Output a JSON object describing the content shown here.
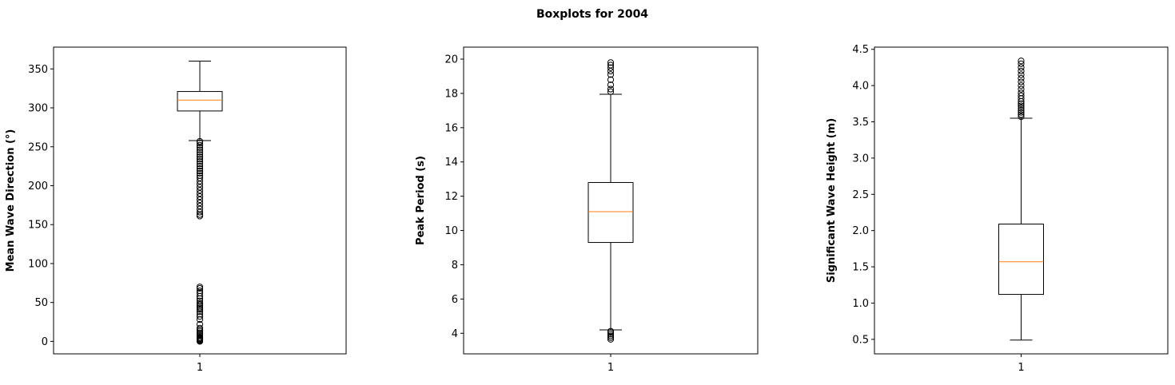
{
  "figure": {
    "title": "Boxplots for 2004"
  },
  "colors": {
    "box": "#000000",
    "median": "#ff7f0e",
    "background": "#ffffff"
  },
  "chart_data": [
    {
      "type": "boxplot",
      "title": "",
      "xlabel": "",
      "ylabel": "Mean Wave Direction (°)",
      "categories": [
        "1"
      ],
      "ylim": [
        -16,
        378
      ],
      "yticks": [
        0,
        50,
        100,
        150,
        200,
        250,
        300,
        350
      ],
      "box": {
        "whisker_low": 258,
        "q1": 296,
        "median": 310,
        "q3": 321,
        "whisker_high": 360
      },
      "outliers": [
        0,
        1,
        2,
        3,
        4,
        5,
        7,
        9,
        11,
        13,
        15,
        17,
        22,
        28,
        32,
        35,
        38,
        41,
        43,
        45,
        47,
        49,
        52,
        55,
        58,
        62,
        65,
        68,
        70,
        161,
        163,
        166,
        170,
        174,
        178,
        182,
        186,
        190,
        194,
        198,
        202,
        206,
        210,
        213,
        216,
        219,
        222,
        225,
        228,
        231,
        234,
        237,
        240,
        243,
        246,
        249,
        252,
        255,
        257
      ]
    },
    {
      "type": "boxplot",
      "title": "",
      "xlabel": "",
      "ylabel": "Peak Period (s)",
      "categories": [
        "1"
      ],
      "ylim": [
        2.8,
        20.7
      ],
      "yticks": [
        4,
        6,
        8,
        10,
        12,
        14,
        16,
        18,
        20
      ],
      "box": {
        "whisker_low": 4.2,
        "q1": 9.3,
        "median": 11.1,
        "q3": 12.8,
        "whisker_high": 17.95
      },
      "outliers": [
        3.65,
        3.75,
        3.85,
        3.95,
        4.05,
        4.12,
        18.1,
        18.25,
        18.5,
        18.8,
        19.1,
        19.3,
        19.5,
        19.65,
        19.8
      ]
    },
    {
      "type": "boxplot",
      "title": "",
      "xlabel": "",
      "ylabel": "Significant Wave Height (m)",
      "categories": [
        "1"
      ],
      "ylim": [
        0.3,
        4.53
      ],
      "yticks": [
        0.5,
        1.0,
        1.5,
        2.0,
        2.5,
        3.0,
        3.5,
        4.0,
        4.5
      ],
      "box": {
        "whisker_low": 0.49,
        "q1": 1.12,
        "median": 1.57,
        "q3": 2.09,
        "whisker_high": 3.55
      },
      "outliers": [
        3.57,
        3.6,
        3.63,
        3.66,
        3.69,
        3.72,
        3.75,
        3.78,
        3.82,
        3.86,
        3.9,
        3.95,
        4.0,
        4.05,
        4.1,
        4.15,
        4.2,
        4.25,
        4.3,
        4.34
      ]
    }
  ]
}
